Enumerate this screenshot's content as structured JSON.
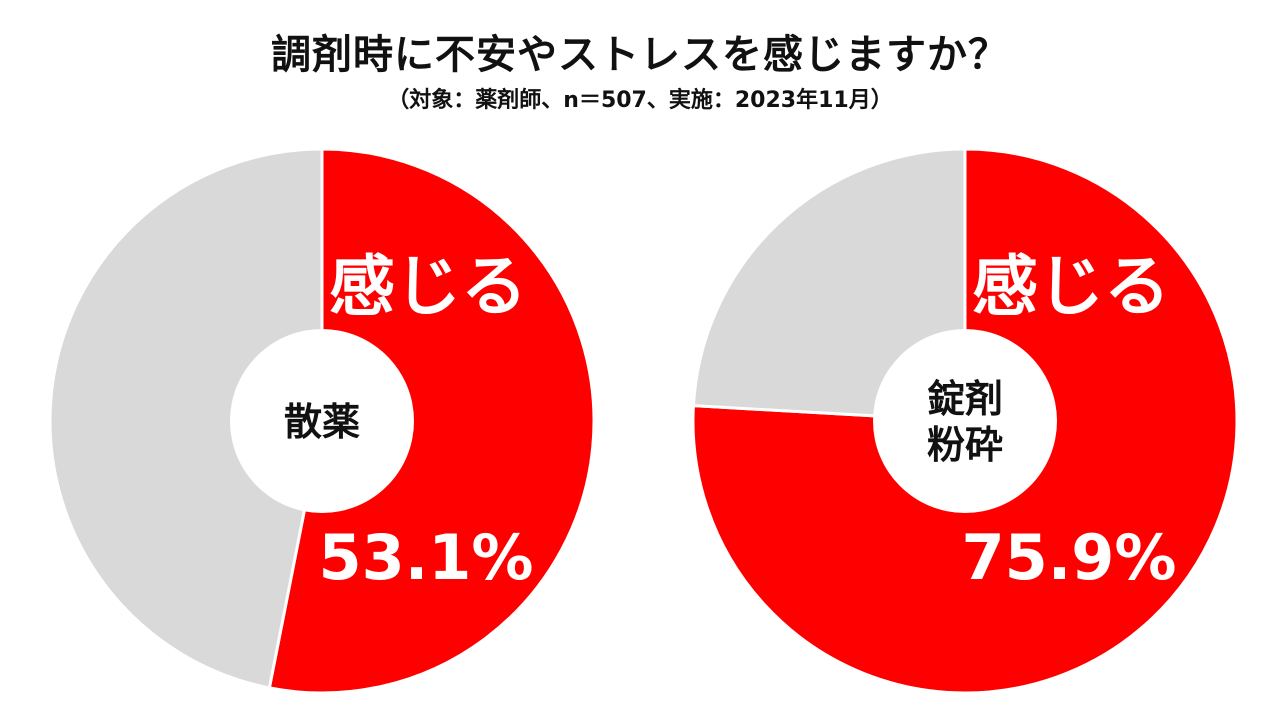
{
  "title": "調剤時に不安やストレスを感じますか？",
  "subtitle": "（対象：薬剤師、n＝507、実施：2023年11月）",
  "colors": {
    "highlight": "#ff0000",
    "rest": "#d9d9d9",
    "center": "#ffffff"
  },
  "chart_data": [
    {
      "type": "pie",
      "center_label": [
        "散薬"
      ],
      "slices": [
        {
          "label": "感じる",
          "value": 53.1,
          "value_text": "53.1%"
        },
        {
          "value": 46.9
        }
      ]
    },
    {
      "type": "pie",
      "center_label": [
        "錠剤",
        "粉砕"
      ],
      "slices": [
        {
          "label": "感じる",
          "value": 75.9,
          "value_text": "75.9%"
        },
        {
          "value": 24.1
        }
      ]
    }
  ]
}
